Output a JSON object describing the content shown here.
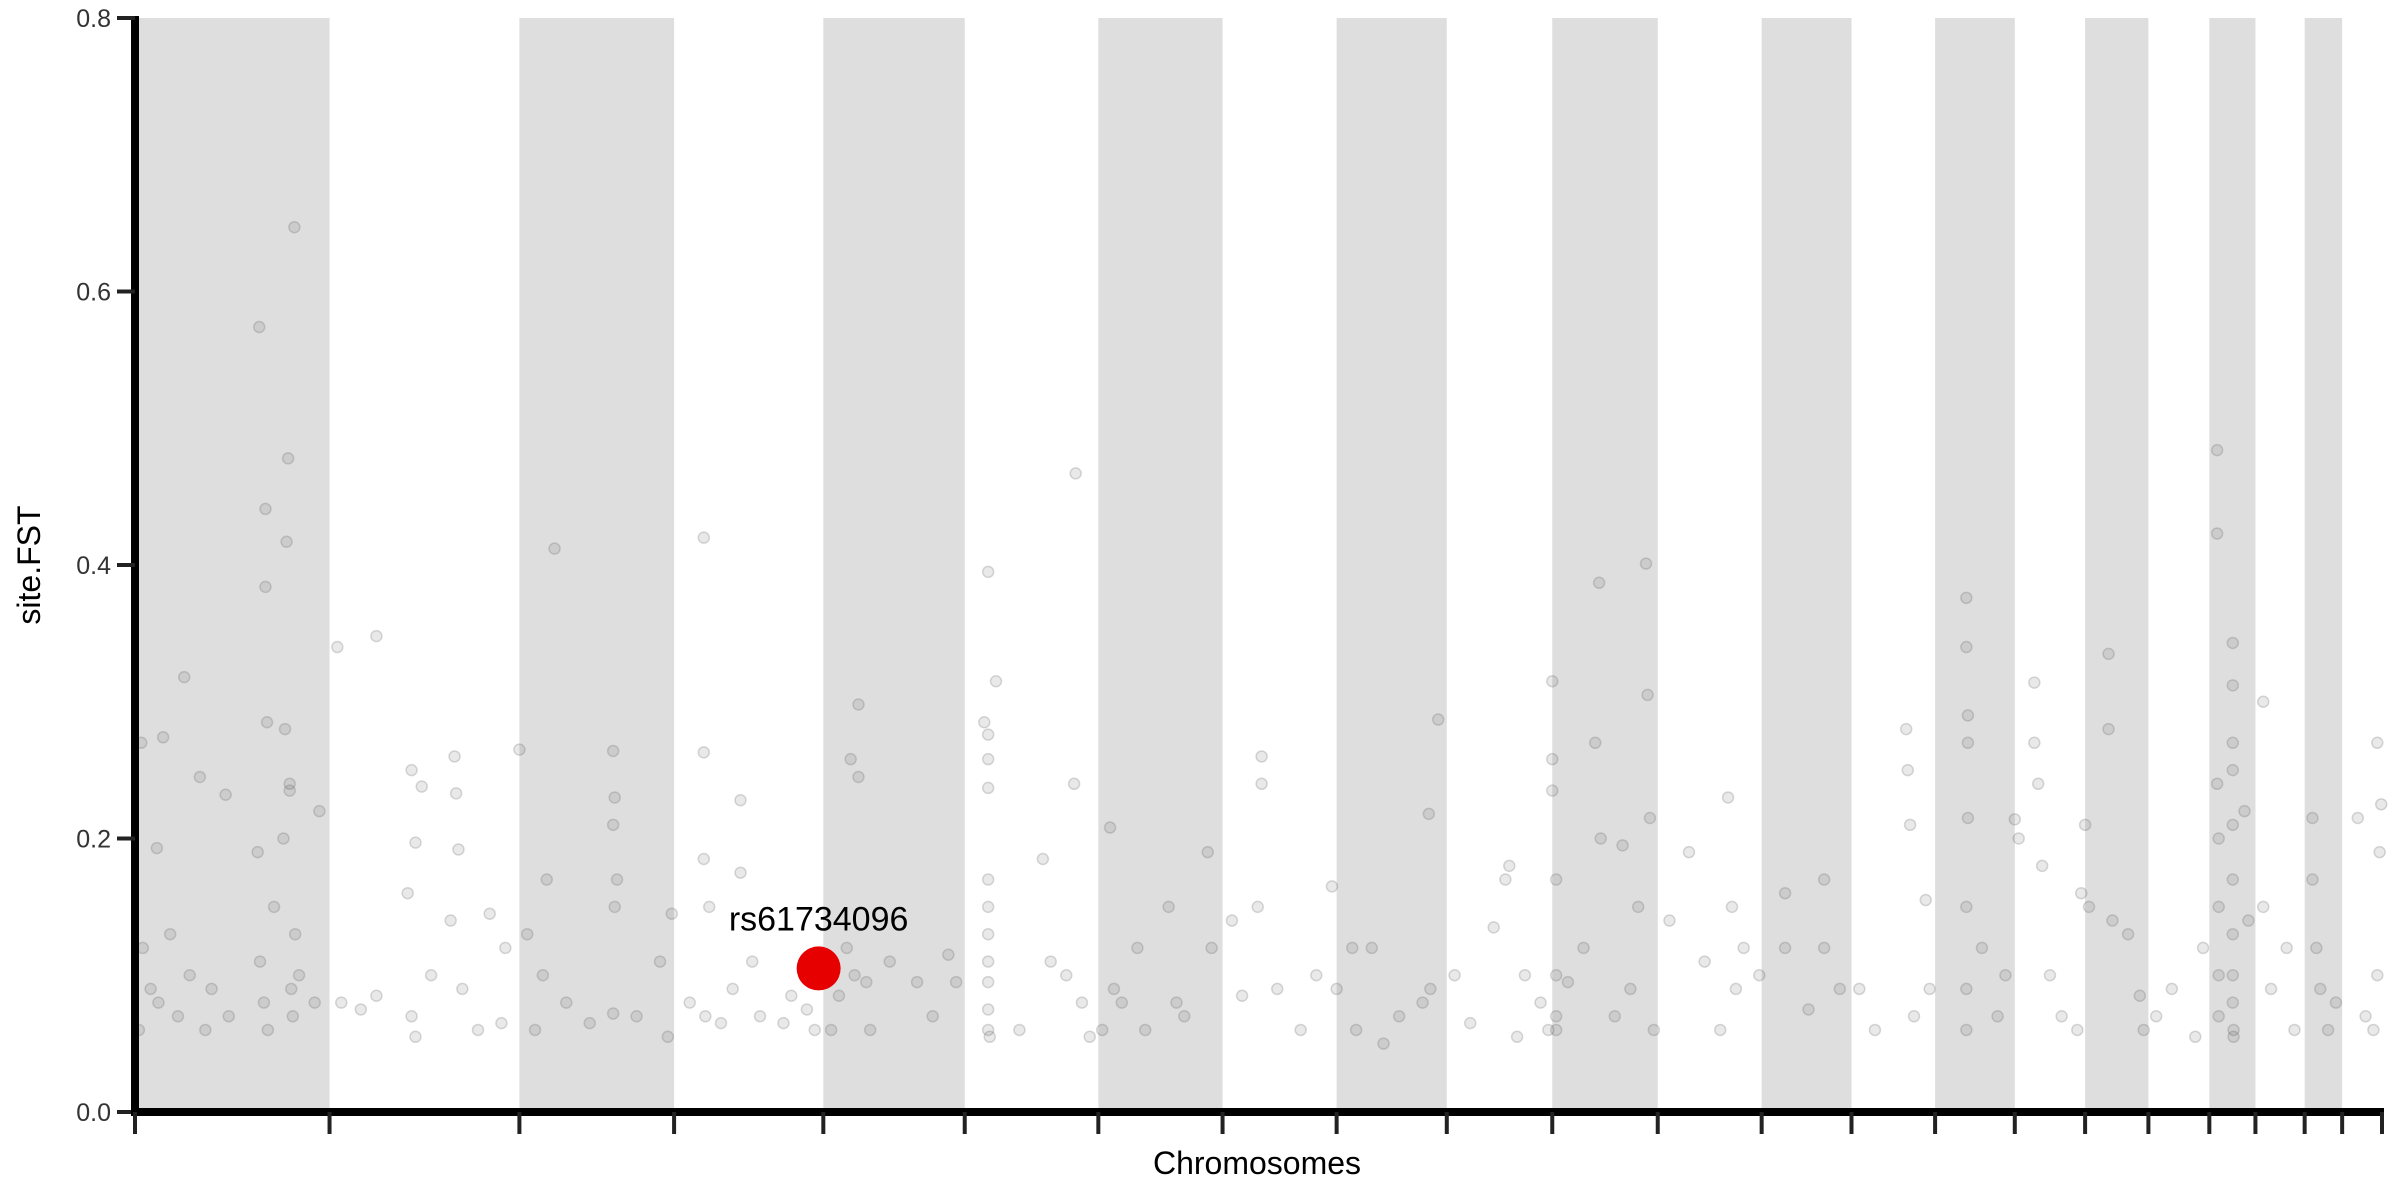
{
  "chart_data": {
    "type": "scatter",
    "title": "",
    "xlabel": "Chromosomes",
    "ylabel": "site.FST",
    "ylim": [
      0,
      0.8
    ],
    "yticks": [
      "0.0",
      "0.2",
      "0.4",
      "0.6",
      "0.8"
    ],
    "ytick_values": [
      0,
      0.2,
      0.4,
      0.6,
      0.8
    ],
    "grid": false,
    "legend": "none",
    "chromosome_lengths_mb": [
      249,
      243,
      198,
      191,
      181,
      171,
      159,
      146,
      141,
      135,
      135,
      133,
      115,
      107,
      102,
      90,
      81,
      78,
      59,
      63,
      48,
      51
    ],
    "band_color": "#dedede",
    "point_color": "#555555",
    "highlight_color": "#e60000",
    "highlight": {
      "label": "rs61734096",
      "chr": 4,
      "pos": 185,
      "fst": 0.105
    },
    "points": [
      [
        1,
        8,
        0.27
      ],
      [
        1,
        36,
        0.274
      ],
      [
        1,
        63,
        0.318
      ],
      [
        1,
        83,
        0.245
      ],
      [
        1,
        116,
        0.232
      ],
      [
        1,
        159,
        0.574
      ],
      [
        1,
        167,
        0.441
      ],
      [
        1,
        167,
        0.384
      ],
      [
        1,
        169,
        0.285
      ],
      [
        1,
        196,
        0.478
      ],
      [
        1,
        194,
        0.417
      ],
      [
        1,
        204,
        0.647
      ],
      [
        1,
        192,
        0.28
      ],
      [
        1,
        236,
        0.22
      ],
      [
        1,
        28,
        0.193
      ],
      [
        1,
        157,
        0.19
      ],
      [
        1,
        198,
        0.235
      ],
      [
        1,
        198,
        0.24
      ],
      [
        1,
        190,
        0.2
      ],
      [
        1,
        10,
        0.12
      ],
      [
        1,
        20,
        0.09
      ],
      [
        1,
        30,
        0.08
      ],
      [
        1,
        45,
        0.13
      ],
      [
        1,
        55,
        0.07
      ],
      [
        1,
        70,
        0.1
      ],
      [
        1,
        90,
        0.06
      ],
      [
        1,
        98,
        0.09
      ],
      [
        1,
        120,
        0.07
      ],
      [
        1,
        160,
        0.11
      ],
      [
        1,
        165,
        0.08
      ],
      [
        1,
        170,
        0.06
      ],
      [
        1,
        178,
        0.15
      ],
      [
        1,
        200,
        0.09
      ],
      [
        1,
        202,
        0.07
      ],
      [
        1,
        205,
        0.13
      ],
      [
        1,
        210,
        0.1
      ],
      [
        1,
        230,
        0.08
      ],
      [
        1,
        5,
        0.06
      ],
      [
        2,
        10,
        0.34
      ],
      [
        2,
        60,
        0.348
      ],
      [
        2,
        105,
        0.25
      ],
      [
        2,
        110,
        0.197
      ],
      [
        2,
        118,
        0.238
      ],
      [
        2,
        160,
        0.26
      ],
      [
        2,
        162,
        0.233
      ],
      [
        2,
        165,
        0.192
      ],
      [
        2,
        155,
        0.14
      ],
      [
        2,
        205,
        0.145
      ],
      [
        2,
        225,
        0.12
      ],
      [
        2,
        15,
        0.08
      ],
      [
        2,
        40,
        0.075
      ],
      [
        2,
        60,
        0.085
      ],
      [
        2,
        105,
        0.07
      ],
      [
        2,
        110,
        0.055
      ],
      [
        2,
        130,
        0.1
      ],
      [
        2,
        170,
        0.09
      ],
      [
        2,
        190,
        0.06
      ],
      [
        2,
        220,
        0.065
      ],
      [
        2,
        100,
        0.16
      ],
      [
        3,
        0,
        0.265
      ],
      [
        3,
        45,
        0.412
      ],
      [
        3,
        35,
        0.17
      ],
      [
        3,
        120,
        0.264
      ],
      [
        3,
        122,
        0.23
      ],
      [
        3,
        120,
        0.21
      ],
      [
        3,
        125,
        0.17
      ],
      [
        3,
        122,
        0.15
      ],
      [
        3,
        195,
        0.145
      ],
      [
        3,
        10,
        0.13
      ],
      [
        3,
        20,
        0.06
      ],
      [
        3,
        30,
        0.1
      ],
      [
        3,
        60,
        0.08
      ],
      [
        3,
        90,
        0.065
      ],
      [
        3,
        120,
        0.072
      ],
      [
        3,
        150,
        0.07
      ],
      [
        3,
        180,
        0.11
      ],
      [
        3,
        190,
        0.055
      ],
      [
        4,
        38,
        0.42
      ],
      [
        4,
        38,
        0.263
      ],
      [
        4,
        38,
        0.185
      ],
      [
        4,
        85,
        0.228
      ],
      [
        4,
        85,
        0.175
      ],
      [
        4,
        45,
        0.15
      ],
      [
        4,
        100,
        0.11
      ],
      [
        4,
        20,
        0.08
      ],
      [
        4,
        40,
        0.07
      ],
      [
        4,
        60,
        0.065
      ],
      [
        4,
        75,
        0.09
      ],
      [
        4,
        110,
        0.07
      ],
      [
        4,
        140,
        0.065
      ],
      [
        4,
        150,
        0.085
      ],
      [
        4,
        170,
        0.075
      ],
      [
        4,
        180,
        0.06
      ],
      [
        5,
        35,
        0.258
      ],
      [
        5,
        45,
        0.298
      ],
      [
        5,
        45,
        0.245
      ],
      [
        5,
        30,
        0.12
      ],
      [
        5,
        20,
        0.085
      ],
      [
        5,
        40,
        0.1
      ],
      [
        5,
        55,
        0.095
      ],
      [
        5,
        60,
        0.06
      ],
      [
        5,
        85,
        0.11
      ],
      [
        5,
        120,
        0.095
      ],
      [
        5,
        140,
        0.07
      ],
      [
        5,
        160,
        0.115
      ],
      [
        5,
        170,
        0.095
      ],
      [
        5,
        10,
        0.06
      ],
      [
        6,
        30,
        0.395
      ],
      [
        6,
        30,
        0.276
      ],
      [
        6,
        30,
        0.258
      ],
      [
        6,
        30,
        0.237
      ],
      [
        6,
        30,
        0.17
      ],
      [
        6,
        30,
        0.15
      ],
      [
        6,
        30,
        0.13
      ],
      [
        6,
        30,
        0.11
      ],
      [
        6,
        30,
        0.095
      ],
      [
        6,
        30,
        0.075
      ],
      [
        6,
        30,
        0.06
      ],
      [
        6,
        32,
        0.055
      ],
      [
        6,
        40,
        0.315
      ],
      [
        6,
        25,
        0.285
      ],
      [
        6,
        70,
        0.06
      ],
      [
        6,
        100,
        0.185
      ],
      [
        6,
        110,
        0.11
      ],
      [
        6,
        130,
        0.1
      ],
      [
        6,
        140,
        0.24
      ],
      [
        6,
        150,
        0.08
      ],
      [
        6,
        160,
        0.055
      ],
      [
        6,
        142,
        0.467
      ],
      [
        7,
        15,
        0.208
      ],
      [
        7,
        20,
        0.09
      ],
      [
        7,
        50,
        0.12
      ],
      [
        7,
        60,
        0.06
      ],
      [
        7,
        90,
        0.15
      ],
      [
        7,
        100,
        0.08
      ],
      [
        7,
        110,
        0.07
      ],
      [
        7,
        140,
        0.19
      ],
      [
        7,
        145,
        0.12
      ],
      [
        7,
        5,
        0.06
      ],
      [
        7,
        30,
        0.08
      ],
      [
        8,
        12,
        0.14
      ],
      [
        8,
        25,
        0.085
      ],
      [
        8,
        50,
        0.26
      ],
      [
        8,
        50,
        0.24
      ],
      [
        8,
        45,
        0.15
      ],
      [
        8,
        100,
        0.06
      ],
      [
        8,
        140,
        0.165
      ],
      [
        8,
        70,
        0.09
      ],
      [
        8,
        120,
        0.1
      ],
      [
        9,
        0,
        0.09
      ],
      [
        9,
        20,
        0.12
      ],
      [
        9,
        25,
        0.06
      ],
      [
        9,
        80,
        0.07
      ],
      [
        9,
        118,
        0.218
      ],
      [
        9,
        120,
        0.09
      ],
      [
        9,
        130,
        0.287
      ],
      [
        9,
        110,
        0.08
      ],
      [
        9,
        60,
        0.05
      ],
      [
        9,
        45,
        0.12
      ],
      [
        10,
        10,
        0.1
      ],
      [
        10,
        30,
        0.065
      ],
      [
        10,
        60,
        0.135
      ],
      [
        10,
        75,
        0.17
      ],
      [
        10,
        80,
        0.18
      ],
      [
        10,
        100,
        0.1
      ],
      [
        10,
        120,
        0.08
      ],
      [
        10,
        130,
        0.06
      ],
      [
        10,
        90,
        0.055
      ],
      [
        11,
        0,
        0.315
      ],
      [
        11,
        0,
        0.258
      ],
      [
        11,
        0,
        0.235
      ],
      [
        11,
        5,
        0.17
      ],
      [
        11,
        5,
        0.1
      ],
      [
        11,
        5,
        0.07
      ],
      [
        11,
        5,
        0.06
      ],
      [
        11,
        20,
        0.095
      ],
      [
        11,
        55,
        0.27
      ],
      [
        11,
        60,
        0.387
      ],
      [
        11,
        62,
        0.2
      ],
      [
        11,
        90,
        0.195
      ],
      [
        11,
        120,
        0.401
      ],
      [
        11,
        122,
        0.305
      ],
      [
        11,
        125,
        0.215
      ],
      [
        11,
        110,
        0.15
      ],
      [
        11,
        100,
        0.09
      ],
      [
        11,
        80,
        0.07
      ],
      [
        11,
        40,
        0.12
      ],
      [
        11,
        130,
        0.06
      ],
      [
        12,
        15,
        0.14
      ],
      [
        12,
        40,
        0.19
      ],
      [
        12,
        60,
        0.11
      ],
      [
        12,
        90,
        0.23
      ],
      [
        12,
        95,
        0.15
      ],
      [
        12,
        100,
        0.09
      ],
      [
        12,
        80,
        0.06
      ],
      [
        12,
        110,
        0.12
      ],
      [
        12,
        130,
        0.1
      ],
      [
        13,
        30,
        0.16
      ],
      [
        13,
        30,
        0.12
      ],
      [
        13,
        60,
        0.075
      ],
      [
        13,
        80,
        0.17
      ],
      [
        13,
        80,
        0.12
      ],
      [
        13,
        100,
        0.09
      ],
      [
        14,
        10,
        0.09
      ],
      [
        14,
        30,
        0.06
      ],
      [
        14,
        70,
        0.28
      ],
      [
        14,
        72,
        0.25
      ],
      [
        14,
        75,
        0.21
      ],
      [
        14,
        80,
        0.07
      ],
      [
        14,
        95,
        0.155
      ],
      [
        14,
        100,
        0.09
      ],
      [
        15,
        40,
        0.376
      ],
      [
        15,
        40,
        0.34
      ],
      [
        15,
        42,
        0.29
      ],
      [
        15,
        42,
        0.27
      ],
      [
        15,
        42,
        0.215
      ],
      [
        15,
        40,
        0.15
      ],
      [
        15,
        40,
        0.09
      ],
      [
        15,
        40,
        0.06
      ],
      [
        15,
        60,
        0.12
      ],
      [
        15,
        80,
        0.07
      ],
      [
        15,
        90,
        0.1
      ],
      [
        16,
        0,
        0.214
      ],
      [
        16,
        5,
        0.2
      ],
      [
        16,
        25,
        0.314
      ],
      [
        16,
        25,
        0.27
      ],
      [
        16,
        30,
        0.24
      ],
      [
        16,
        35,
        0.18
      ],
      [
        16,
        45,
        0.1
      ],
      [
        16,
        60,
        0.07
      ],
      [
        16,
        80,
        0.06
      ],
      [
        16,
        85,
        0.16
      ],
      [
        17,
        0,
        0.21
      ],
      [
        17,
        5,
        0.15
      ],
      [
        17,
        30,
        0.335
      ],
      [
        17,
        30,
        0.28
      ],
      [
        17,
        35,
        0.14
      ],
      [
        17,
        55,
        0.13
      ],
      [
        17,
        70,
        0.085
      ],
      [
        17,
        75,
        0.06
      ],
      [
        18,
        10,
        0.07
      ],
      [
        18,
        30,
        0.09
      ],
      [
        18,
        60,
        0.055
      ],
      [
        18,
        70,
        0.12
      ],
      [
        19,
        10,
        0.484
      ],
      [
        19,
        10,
        0.423
      ],
      [
        19,
        10,
        0.24
      ],
      [
        19,
        12,
        0.2
      ],
      [
        19,
        12,
        0.15
      ],
      [
        19,
        12,
        0.1
      ],
      [
        19,
        12,
        0.07
      ],
      [
        19,
        30,
        0.343
      ],
      [
        19,
        30,
        0.312
      ],
      [
        19,
        30,
        0.27
      ],
      [
        19,
        30,
        0.25
      ],
      [
        19,
        30,
        0.21
      ],
      [
        19,
        30,
        0.17
      ],
      [
        19,
        30,
        0.13
      ],
      [
        19,
        30,
        0.1
      ],
      [
        19,
        30,
        0.08
      ],
      [
        19,
        31,
        0.06
      ],
      [
        19,
        31,
        0.055
      ],
      [
        19,
        45,
        0.22
      ],
      [
        19,
        50,
        0.14
      ],
      [
        20,
        10,
        0.3
      ],
      [
        20,
        10,
        0.15
      ],
      [
        20,
        20,
        0.09
      ],
      [
        20,
        40,
        0.12
      ],
      [
        20,
        50,
        0.06
      ],
      [
        21,
        10,
        0.17
      ],
      [
        21,
        10,
        0.215
      ],
      [
        21,
        15,
        0.12
      ],
      [
        21,
        20,
        0.09
      ],
      [
        21,
        30,
        0.06
      ],
      [
        21,
        40,
        0.08
      ],
      [
        22,
        20,
        0.215
      ],
      [
        22,
        30,
        0.07
      ],
      [
        22,
        45,
        0.27
      ],
      [
        22,
        50,
        0.225
      ],
      [
        22,
        48,
        0.19
      ],
      [
        22,
        45,
        0.1
      ],
      [
        22,
        40,
        0.06
      ]
    ]
  }
}
